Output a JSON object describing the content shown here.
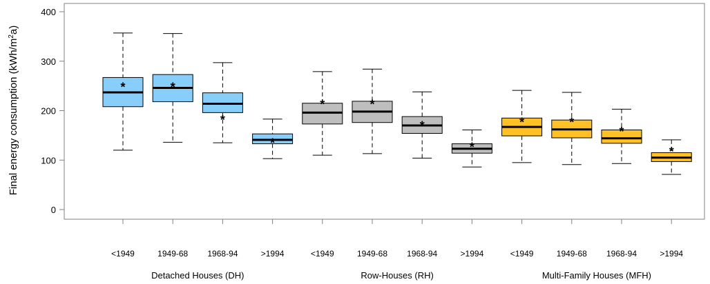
{
  "chart_data": {
    "type": "boxplot",
    "ylabel": "Final energy consumption (kWh/m",
    "ylabel_sup": "2",
    "ylabel_suffix": "a)",
    "ylim": [
      0,
      420
    ],
    "yticks": [
      0,
      100,
      200,
      300,
      400
    ],
    "groups": [
      {
        "label": "Detached Houses (DH)",
        "color": "#87CEFA",
        "boxes": [
          {
            "category": "<1949",
            "whisker_low": 120,
            "q1": 208,
            "median": 237,
            "q3": 267,
            "whisker_high": 357,
            "mean": 250
          },
          {
            "category": "1949-68",
            "whisker_low": 136,
            "q1": 218,
            "median": 246,
            "q3": 273,
            "whisker_high": 356,
            "mean": 250
          },
          {
            "category": "1968-94",
            "whisker_low": 135,
            "q1": 196,
            "median": 214,
            "q3": 236,
            "whisker_high": 297,
            "mean": 184
          },
          {
            "category": ">1994",
            "whisker_low": 103,
            "q1": 133,
            "median": 141,
            "q3": 153,
            "whisker_high": 183,
            "mean": 137
          }
        ]
      },
      {
        "label": "Row-Houses (RH)",
        "color": "#BEBEBE",
        "boxes": [
          {
            "category": "<1949",
            "whisker_low": 110,
            "q1": 173,
            "median": 196,
            "q3": 215,
            "whisker_high": 279,
            "mean": 215
          },
          {
            "category": "1949-68",
            "whisker_low": 113,
            "q1": 176,
            "median": 198,
            "q3": 219,
            "whisker_high": 284,
            "mean": 215
          },
          {
            "category": "1968-94",
            "whisker_low": 104,
            "q1": 154,
            "median": 170,
            "q3": 188,
            "whisker_high": 238,
            "mean": 172
          },
          {
            "category": ">1994",
            "whisker_low": 86,
            "q1": 114,
            "median": 123,
            "q3": 133,
            "whisker_high": 161,
            "mean": 129
          }
        ]
      },
      {
        "label": "Multi-Family Houses (MFH)",
        "color": "#FFC125",
        "boxes": [
          {
            "category": "<1949",
            "whisker_low": 95,
            "q1": 149,
            "median": 167,
            "q3": 185,
            "whisker_high": 241,
            "mean": 179
          },
          {
            "category": "1949-68",
            "whisker_low": 91,
            "q1": 145,
            "median": 162,
            "q3": 181,
            "whisker_high": 237,
            "mean": 179
          },
          {
            "category": "1968-94",
            "whisker_low": 93,
            "q1": 134,
            "median": 144,
            "q3": 161,
            "whisker_high": 203,
            "mean": 160
          },
          {
            "category": ">1994",
            "whisker_low": 71,
            "q1": 97,
            "median": 105,
            "q3": 115,
            "whisker_high": 141,
            "mean": 120
          }
        ]
      }
    ],
    "mean_marker": "*",
    "grid": false
  }
}
